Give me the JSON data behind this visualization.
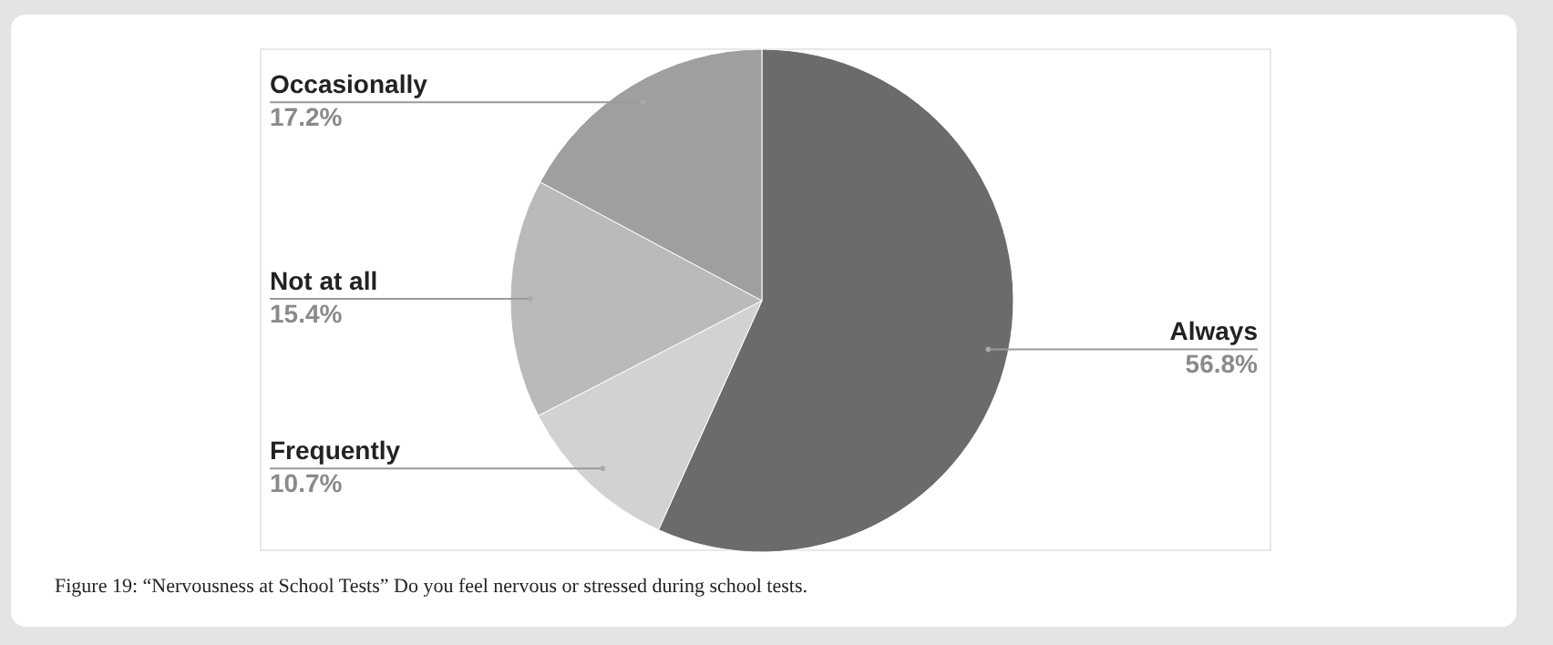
{
  "chart_data": {
    "type": "pie",
    "categories": [
      "Always",
      "Frequently",
      "Not at all",
      "Occasionally"
    ],
    "values": [
      56.8,
      10.7,
      15.4,
      17.2
    ],
    "colors": [
      "#6b6b6b",
      "#d2d2d2",
      "#bababa",
      "#9f9f9f"
    ],
    "value_labels": [
      "56.8%",
      "10.7%",
      "15.4%",
      "17.2%"
    ],
    "annotations": [
      "Figure 19: “Nervousness at School Tests” Do you feel nervous or stressed during school tests."
    ]
  }
}
